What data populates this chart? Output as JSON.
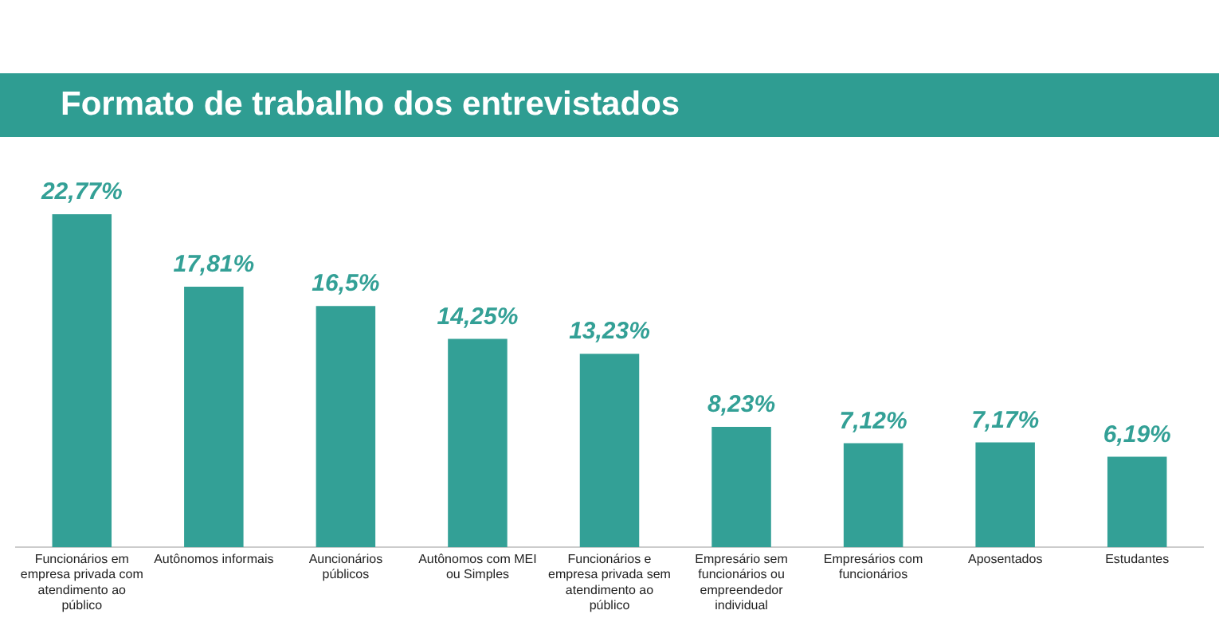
{
  "chart_data": {
    "type": "bar",
    "title": "Formato de trabalho dos entrevistados",
    "categories": [
      "Funcionários em empresa privada com atendimento ao público",
      "Autônomos informais",
      "Auncionários públicos",
      "Autônomos com MEI ou Simples",
      "Funcionários e empresa privada sem atendimento ao público",
      "Empresário sem funcionários ou empreendedor individual",
      "Empresários com funcionários",
      "Aposentados",
      "Estudantes"
    ],
    "values": [
      22.77,
      17.81,
      16.5,
      14.25,
      13.23,
      8.23,
      7.12,
      7.17,
      6.19
    ],
    "value_labels": [
      "22,77%",
      "17,81%",
      "16,5%",
      "14,25%",
      "13,23%",
      "8,23%",
      "7,12%",
      "7,17%",
      "6,19%"
    ],
    "color": "#33a096",
    "tick_labels": "x",
    "legend": false
  }
}
